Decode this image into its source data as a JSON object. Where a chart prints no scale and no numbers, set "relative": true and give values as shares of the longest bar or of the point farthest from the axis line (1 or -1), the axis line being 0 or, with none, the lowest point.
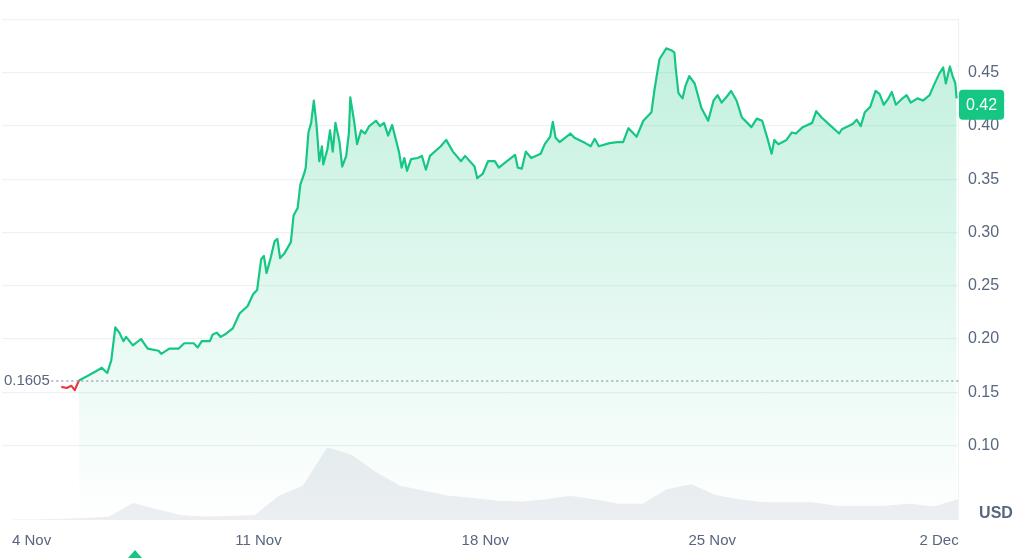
{
  "chart_data": [
    {
      "type": "area",
      "ylabel": "USD",
      "xlim": [
        "--11-03T02:00",
        "--12-02T14:00"
      ],
      "ylim": [
        0.03,
        0.5
      ],
      "xticks": [
        {
          "value": "--11-04",
          "label": "4 Nov"
        },
        {
          "value": "--11-11",
          "label": "11 Nov"
        },
        {
          "value": "--11-18",
          "label": "18 Nov"
        },
        {
          "value": "--11-25",
          "label": "25 Nov"
        },
        {
          "value": "--12-02",
          "label": "2 Dec"
        }
      ],
      "yticks": [
        {
          "value": 0.1,
          "label": "0.10"
        },
        {
          "value": 0.15,
          "label": "0.15"
        },
        {
          "value": 0.2,
          "label": "0.20"
        },
        {
          "value": 0.25,
          "label": "0.25"
        },
        {
          "value": 0.3,
          "label": "0.30"
        },
        {
          "value": 0.35,
          "label": "0.35"
        },
        {
          "value": 0.4,
          "label": "0.40"
        },
        {
          "value": 0.45,
          "label": "0.45"
        },
        {
          "value": 0.5,
          "label": null
        }
      ],
      "grid": "y",
      "legend": false,
      "marker": "none",
      "line_style": "solid",
      "ref_lines": [
        {
          "axis": "y",
          "value": 0.1605,
          "label": "0.1605",
          "color": "#a1a7bb",
          "line_style": "dotted"
        }
      ],
      "annotations": [
        {
          "text": "0.42",
          "x": "--12-02T13:00",
          "y": 0.42
        }
      ],
      "series": [
        {
          "type": "line",
          "color": "#ea3943",
          "x": [
            "--11-04T22:00",
            "--11-05T02:00",
            "--11-05T05:30",
            "--11-05T08:00",
            "--11-05T11:00"
          ],
          "values": [
            0.155,
            0.154,
            0.156,
            0.152,
            0.161
          ]
        },
        {
          "type": "area",
          "color": "#16c784",
          "x": [
            "--11-05T11:00",
            "--11-05T17:00",
            "--11-06T00:00",
            "--11-06T04:00",
            "--11-06T08:00",
            "--11-06T11:00",
            "--11-06T14:00",
            "--11-06T17:00",
            "--11-06T20:00",
            "--11-06T22:00",
            "--11-07T03:00",
            "--11-07T09:00",
            "--11-07T14:00",
            "--11-07T22:00",
            "--11-08T00:00",
            "--11-08T06:00",
            "--11-08T13:00",
            "--11-08T17:00",
            "--11-09T00:00",
            "--11-09T03:00",
            "--11-09T06:00",
            "--11-09T12:00",
            "--11-09T14:00",
            "--11-09T17:00",
            "--11-09T20:00",
            "--11-10T00:00",
            "--11-10T05:00",
            "--11-10T10:00",
            "--11-10T16:00",
            "--11-10T20:00",
            "--11-10T23:00",
            "--11-11T02:00",
            "--11-11T04:00",
            "--11-11T06:00",
            "--11-11T09:00",
            "--11-11T12:00",
            "--11-11T14:00",
            "--11-11T16:00",
            "--11-11T19:00",
            "--11-12T00:00",
            "--11-12T02:00",
            "--11-12T05:00",
            "--11-12T07:00",
            "--11-12T10:00",
            "--11-12T11:00",
            "--11-12T13:00",
            "--11-12T15:00",
            "--11-12T17:00",
            "--11-12T19:00",
            "--11-12T21:00",
            "--11-12T23:00",
            "--11-13T00:00",
            "--11-13T03:00",
            "--11-13T05:00",
            "--11-13T07:00",
            "--11-13T09:00",
            "--11-13T12:00",
            "--11-13T14:00",
            "--11-13T17:00",
            "--11-13T19:00",
            "--11-13T20:00",
            "--11-13T23:00",
            "--11-14T01:00",
            "--11-14T04:00",
            "--11-14T07:00",
            "--11-14T10:00",
            "--11-14T15:00",
            "--11-14T18:00",
            "--11-14T21:00",
            "--11-15T00:00",
            "--11-15T03:00",
            "--11-15T08:00",
            "--11-15T10:00",
            "--11-15T12:00",
            "--11-15T14:00",
            "--11-15T17:00",
            "--11-15T22:00",
            "--11-16T01:00",
            "--11-16T04:00",
            "--11-16T07:00",
            "--11-16T15:00",
            "--11-16T19:00",
            "--11-17T00:00",
            "--11-17T06:00",
            "--11-17T09:00",
            "--11-17T16:00",
            "--11-17T18:00",
            "--11-17T22:00",
            "--11-18T02:00",
            "--11-18T07:00",
            "--11-18T10:00",
            "--11-18T16:00",
            "--11-18T22:00",
            "--11-19T00:00",
            "--11-19T03:00",
            "--11-19T06:00",
            "--11-19T10:00",
            "--11-19T17:00",
            "--11-19T20:00",
            "--11-20T00:00",
            "--11-20T02:00",
            "--11-20T04:00",
            "--11-20T07:00",
            "--11-20T15:00",
            "--11-20T18:00",
            "--11-21T02:00",
            "--11-21T06:00",
            "--11-21T09:00",
            "--11-21T12:00",
            "--11-21T20:00",
            "--11-22T02:00",
            "--11-22T06:00",
            "--11-22T10:00",
            "--11-22T13:00",
            "--11-22T16:00",
            "--11-22T21:00",
            "--11-23T03:00",
            "--11-23T05:00",
            "--11-23T07:00",
            "--11-23T09:00",
            "--11-23T14:00",
            "--11-23T18:00",
            "--11-23T20:00",
            "--11-23T21:00",
            "--11-23T23:00",
            "--11-24T02:00",
            "--11-24T04:00",
            "--11-24T07:00",
            "--11-24T11:00",
            "--11-24T16:00",
            "--11-24T21:00",
            "--11-25T01:00",
            "--11-25T04:00",
            "--11-25T07:00",
            "--11-25T11:00",
            "--11-25T14:00",
            "--11-25T18:00",
            "--11-25T22:00",
            "--11-26T02:00",
            "--11-26T05:00",
            "--11-26T09:00",
            "--11-26T13:00",
            "--11-26T17:00",
            "--11-26T20:00",
            "--11-26T22:00",
            "--11-27T01:00",
            "--11-27T07:00",
            "--11-27T11:00",
            "--11-27T14:00",
            "--11-27T19:00",
            "--11-28T02:00",
            "--11-28T05:00",
            "--11-28T09:00",
            "--11-28T16:00",
            "--11-28T22:00",
            "--11-29T00:00",
            "--11-29T08:00",
            "--11-29T11:00",
            "--11-29T14:00",
            "--11-29T17:00",
            "--11-29T21:00",
            "--11-30T01:00",
            "--11-30T04:00",
            "--11-30T07:00",
            "--11-30T10:00",
            "--11-30T13:00",
            "--11-30T16:00",
            "--11-30T20:00",
            "--12-01T00:00",
            "--12-01T03:00",
            "--12-01T08:00",
            "--12-01T12:00",
            "--12-01T17:00",
            "--12-01T20:00",
            "--12-02T00:00",
            "--12-02T03:00",
            "--12-02T05:00",
            "--12-02T08:00",
            "--12-02T10:00",
            "--12-02T12:00",
            "--12-02T13:00"
          ],
          "values": [
            0.161,
            0.165,
            0.17,
            0.173,
            0.168,
            0.18,
            0.211,
            0.206,
            0.198,
            0.202,
            0.194,
            0.2,
            0.191,
            0.189,
            0.186,
            0.191,
            0.191,
            0.196,
            0.196,
            0.192,
            0.198,
            0.198,
            0.204,
            0.206,
            0.202,
            0.205,
            0.21,
            0.224,
            0.231,
            0.242,
            0.246,
            0.275,
            0.278,
            0.262,
            0.276,
            0.292,
            0.294,
            0.276,
            0.28,
            0.291,
            0.316,
            0.323,
            0.345,
            0.356,
            0.361,
            0.394,
            0.403,
            0.424,
            0.401,
            0.367,
            0.381,
            0.364,
            0.378,
            0.396,
            0.376,
            0.403,
            0.385,
            0.362,
            0.372,
            0.394,
            0.427,
            0.403,
            0.383,
            0.396,
            0.393,
            0.4,
            0.405,
            0.4,
            0.403,
            0.391,
            0.401,
            0.376,
            0.361,
            0.37,
            0.358,
            0.369,
            0.37,
            0.372,
            0.359,
            0.372,
            0.381,
            0.387,
            0.376,
            0.367,
            0.372,
            0.362,
            0.351,
            0.355,
            0.367,
            0.367,
            0.361,
            0.367,
            0.373,
            0.361,
            0.36,
            0.376,
            0.37,
            0.374,
            0.383,
            0.39,
            0.404,
            0.389,
            0.385,
            0.393,
            0.389,
            0.384,
            0.381,
            0.388,
            0.381,
            0.384,
            0.385,
            0.385,
            0.398,
            0.394,
            0.39,
            0.405,
            0.413,
            0.432,
            0.448,
            0.463,
            0.473,
            0.471,
            0.469,
            0.454,
            0.431,
            0.426,
            0.437,
            0.447,
            0.44,
            0.417,
            0.405,
            0.424,
            0.429,
            0.422,
            0.428,
            0.433,
            0.424,
            0.408,
            0.403,
            0.399,
            0.407,
            0.405,
            0.388,
            0.374,
            0.387,
            0.383,
            0.387,
            0.394,
            0.393,
            0.399,
            0.403,
            0.414,
            0.408,
            0.4,
            0.393,
            0.397,
            0.402,
            0.406,
            0.4,
            0.413,
            0.418,
            0.433,
            0.43,
            0.42,
            0.425,
            0.432,
            0.42,
            0.425,
            0.429,
            0.422,
            0.426,
            0.424,
            0.429,
            0.438,
            0.449,
            0.455,
            0.44,
            0.456,
            0.447,
            0.44,
            0.426
          ]
        }
      ]
    },
    {
      "type": "area",
      "relative": true,
      "legend": false,
      "grid": false,
      "marker": "none",
      "categories": [
        null,
        null,
        null,
        null,
        null,
        null,
        null,
        null,
        null,
        null,
        null,
        null,
        null,
        null,
        null,
        null,
        null,
        null,
        null,
        null,
        null,
        null,
        null,
        null,
        null,
        null,
        null,
        null,
        null,
        null,
        null,
        null,
        null,
        null,
        null,
        null,
        null,
        null,
        null,
        null
      ],
      "series": [
        {
          "type": "area",
          "color": "#eceef2",
          "values": [
            0,
            0,
            0.01,
            0.02,
            0.04,
            0.23,
            0.14,
            0.06,
            0.04,
            0.05,
            0.06,
            0.33,
            0.47,
            1,
            0.9,
            0.66,
            0.47,
            0.4,
            0.33,
            0.3,
            0.26,
            0.25,
            0.28,
            0.33,
            0.28,
            0.22,
            0.22,
            0.42,
            0.49,
            0.34,
            0.28,
            0.24,
            0.24,
            0.24,
            0.19,
            0.19,
            0.19,
            0.22,
            0.18,
            0.28
          ]
        }
      ]
    }
  ]
}
